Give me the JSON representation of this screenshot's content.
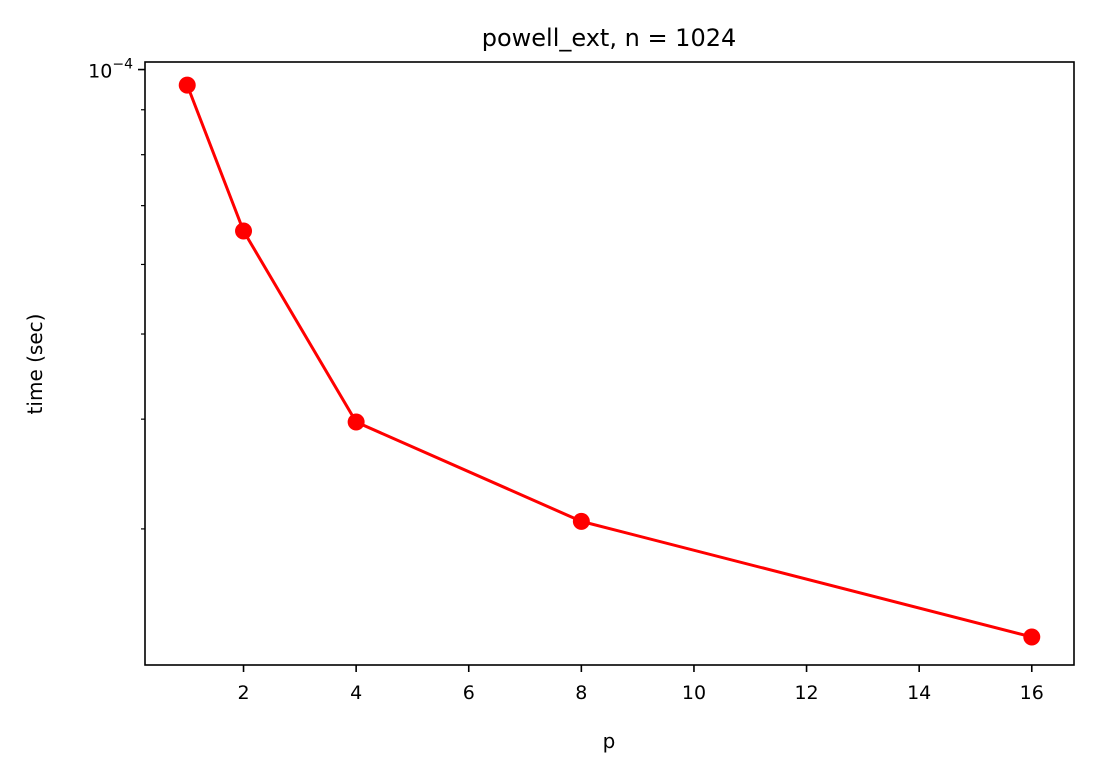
{
  "chart_data": {
    "type": "line",
    "title": "powell_ext, n = 1024",
    "xlabel": "p",
    "ylabel": "time (sec)",
    "xscale": "linear",
    "yscale": "log",
    "xlim": [
      0.25,
      16.75
    ],
    "ylim": [
      2.1e-05,
      0.000102
    ],
    "xticks": [
      2,
      4,
      6,
      8,
      10,
      12,
      14,
      16
    ],
    "xtick_labels": [
      "2",
      "4",
      "6",
      "8",
      "10",
      "12",
      "14",
      "16"
    ],
    "yticks_major": [
      0.0001
    ],
    "ytick_labels": [
      {
        "base": "10",
        "exp": "−4"
      }
    ],
    "yticks_minor": [
      3e-05,
      4e-05,
      5e-05,
      6e-05,
      7e-05,
      8e-05,
      9e-05
    ],
    "grid": false,
    "legend": "none",
    "series": [
      {
        "x": [
          1,
          2,
          4,
          8,
          16
        ],
        "values": [
          9.6e-05,
          6.55e-05,
          3.97e-05,
          3.06e-05,
          2.26e-05
        ],
        "color": "#ff0000",
        "marker": "circle"
      }
    ]
  }
}
